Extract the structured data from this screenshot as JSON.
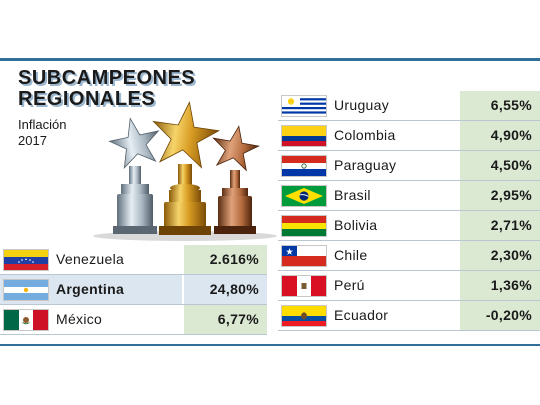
{
  "header": {
    "title_line1": "SUBCAMPEONES",
    "title_line2": "REGIONALES",
    "subtitle_line1": "Inflación",
    "subtitle_line2": "2017"
  },
  "left_table": [
    {
      "country": "Venezuela",
      "value": "2.616%",
      "flag": "venezuela-flag-icon"
    },
    {
      "country": "Argentina",
      "value": "24,80%",
      "flag": "argentina-flag-icon"
    },
    {
      "country": "México",
      "value": "6,77%",
      "flag": "mexico-flag-icon"
    }
  ],
  "right_table": [
    {
      "country": "Uruguay",
      "value": "6,55%",
      "flag": "uruguay-flag-icon"
    },
    {
      "country": "Colombia",
      "value": "4,90%",
      "flag": "colombia-flag-icon"
    },
    {
      "country": "Paraguay",
      "value": "4,50%",
      "flag": "paraguay-flag-icon"
    },
    {
      "country": "Brasil",
      "value": "2,95%",
      "flag": "brasil-flag-icon"
    },
    {
      "country": "Bolivia",
      "value": "2,71%",
      "flag": "bolivia-flag-icon"
    },
    {
      "country": "Chile",
      "value": "2,30%",
      "flag": "chile-flag-icon"
    },
    {
      "country": "Perú",
      "value": "1,36%",
      "flag": "peru-flag-icon"
    },
    {
      "country": "Ecuador",
      "value": "-0,20%",
      "flag": "ecuador-flag-icon"
    }
  ],
  "colors": {
    "accent": "#2f6f99",
    "value_cell": "#dbe9d3",
    "highlight_row": "#dbe6f0"
  }
}
